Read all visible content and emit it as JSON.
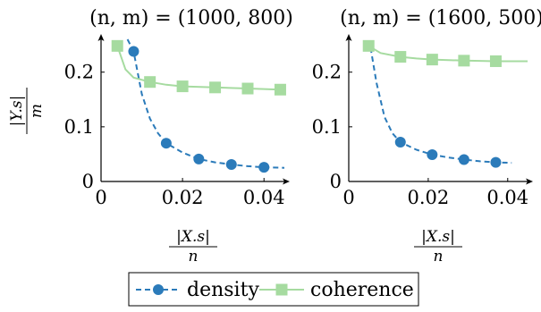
{
  "chart_data": [
    {
      "type": "line",
      "title": "(n, m) = (1000, 800)",
      "xlabel_num": "|X.s|",
      "xlabel_den": "n",
      "ylabel_num": "|Y.s|",
      "ylabel_den": "m",
      "xlim": [
        0,
        0.045
      ],
      "ylim": [
        0,
        0.26
      ],
      "xticks": [
        0,
        0.02,
        0.04
      ],
      "xtick_labels": [
        "0",
        "0.02",
        "0.04"
      ],
      "yticks": [
        0,
        0.1,
        0.2
      ],
      "ytick_labels": [
        "0",
        "0.1",
        "0.2"
      ],
      "series": [
        {
          "name": "density",
          "style": "dashed",
          "marker": "circle",
          "color": "#2b7bba",
          "points": [
            [
              0.008,
              0.238
            ],
            [
              0.016,
              0.07
            ],
            [
              0.024,
              0.041
            ],
            [
              0.032,
              0.031
            ],
            [
              0.04,
              0.026
            ]
          ],
          "curve": [
            [
              0.0065,
              0.26
            ],
            [
              0.008,
              0.238
            ],
            [
              0.01,
              0.16
            ],
            [
              0.012,
              0.115
            ],
            [
              0.014,
              0.088
            ],
            [
              0.016,
              0.07
            ],
            [
              0.02,
              0.053
            ],
            [
              0.024,
              0.041
            ],
            [
              0.028,
              0.035
            ],
            [
              0.032,
              0.031
            ],
            [
              0.036,
              0.028
            ],
            [
              0.04,
              0.026
            ],
            [
              0.045,
              0.025
            ]
          ]
        },
        {
          "name": "coherence",
          "style": "solid",
          "marker": "square",
          "color": "#a6dba0",
          "points": [
            [
              0.004,
              0.248
            ],
            [
              0.012,
              0.182
            ],
            [
              0.02,
              0.174
            ],
            [
              0.028,
              0.172
            ],
            [
              0.036,
              0.17
            ],
            [
              0.044,
              0.168
            ]
          ],
          "curve": [
            [
              0.004,
              0.248
            ],
            [
              0.006,
              0.205
            ],
            [
              0.008,
              0.19
            ],
            [
              0.012,
              0.182
            ],
            [
              0.016,
              0.177
            ],
            [
              0.02,
              0.174
            ],
            [
              0.028,
              0.172
            ],
            [
              0.036,
              0.17
            ],
            [
              0.044,
              0.168
            ],
            [
              0.045,
              0.168
            ]
          ]
        }
      ]
    },
    {
      "type": "line",
      "title": "(n, m) = (1600, 500)",
      "xlabel_num": "|X.s|",
      "xlabel_den": "n",
      "xlim": [
        0,
        0.045
      ],
      "ylim": [
        0,
        0.26
      ],
      "xticks": [
        0,
        0.02,
        0.04
      ],
      "xtick_labels": [
        "0",
        "0.02",
        "0.04"
      ],
      "yticks": [
        0,
        0.1,
        0.2
      ],
      "ytick_labels": [
        "0",
        "0.1",
        "0.2"
      ],
      "series": [
        {
          "name": "density",
          "style": "dashed",
          "marker": "circle",
          "color": "#2b7bba",
          "points": [
            [
              0.013,
              0.072
            ],
            [
              0.021,
              0.049
            ],
            [
              0.029,
              0.04
            ],
            [
              0.037,
              0.035
            ]
          ],
          "curve": [
            [
              0.0055,
              0.245
            ],
            [
              0.007,
              0.18
            ],
            [
              0.009,
              0.118
            ],
            [
              0.011,
              0.088
            ],
            [
              0.013,
              0.072
            ],
            [
              0.017,
              0.058
            ],
            [
              0.021,
              0.049
            ],
            [
              0.025,
              0.044
            ],
            [
              0.029,
              0.04
            ],
            [
              0.033,
              0.037
            ],
            [
              0.037,
              0.035
            ],
            [
              0.041,
              0.034
            ]
          ]
        },
        {
          "name": "coherence",
          "style": "solid",
          "marker": "square",
          "color": "#a6dba0",
          "points": [
            [
              0.005,
              0.248
            ],
            [
              0.013,
              0.228
            ],
            [
              0.021,
              0.223
            ],
            [
              0.029,
              0.221
            ],
            [
              0.037,
              0.22
            ]
          ],
          "curve": [
            [
              0.005,
              0.248
            ],
            [
              0.008,
              0.235
            ],
            [
              0.013,
              0.228
            ],
            [
              0.017,
              0.225
            ],
            [
              0.021,
              0.223
            ],
            [
              0.029,
              0.221
            ],
            [
              0.037,
              0.22
            ],
            [
              0.045,
              0.22
            ]
          ]
        }
      ]
    }
  ],
  "legend": {
    "placement": "bottom-center",
    "items": [
      {
        "label": "density",
        "color": "#2b7bba",
        "style": "dashed",
        "marker": "circle"
      },
      {
        "label": "coherence",
        "color": "#a6dba0",
        "style": "solid",
        "marker": "square"
      }
    ]
  }
}
